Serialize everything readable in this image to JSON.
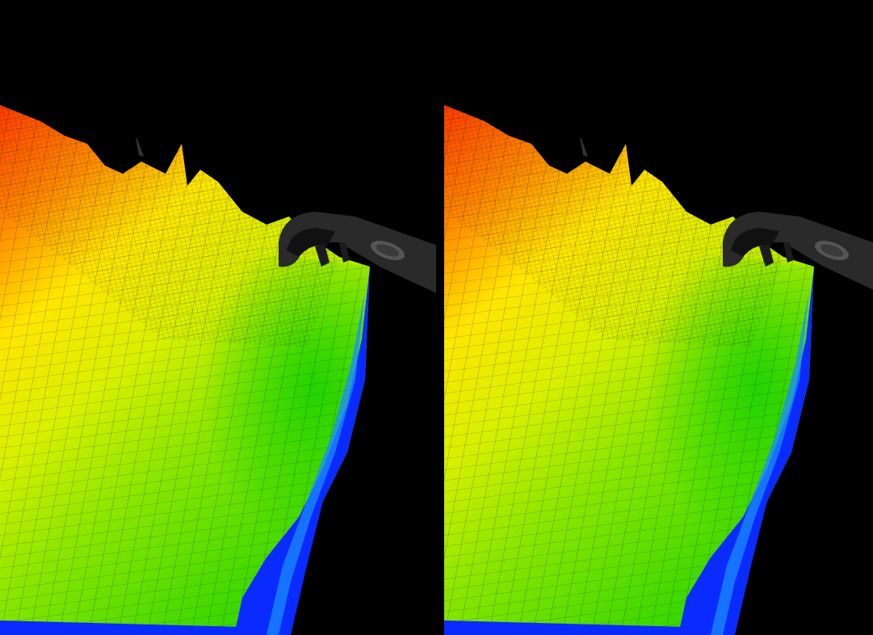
{
  "app": {
    "title": "",
    "mode": "stereoscopic-vr"
  },
  "views": [
    {
      "eye": "left"
    },
    {
      "eye": "right"
    }
  ],
  "scene": {
    "content": "terrain-surface-mesh",
    "colormap": [
      "#0a2bff",
      "#1a8cff",
      "#00c800",
      "#7fe600",
      "#d9f000",
      "#ffe600",
      "#ff9a00",
      "#ff3b00"
    ],
    "background_color": "#000000"
  },
  "controller": {
    "icon": "vr-controller-icon",
    "color": "#2a2a2a"
  }
}
